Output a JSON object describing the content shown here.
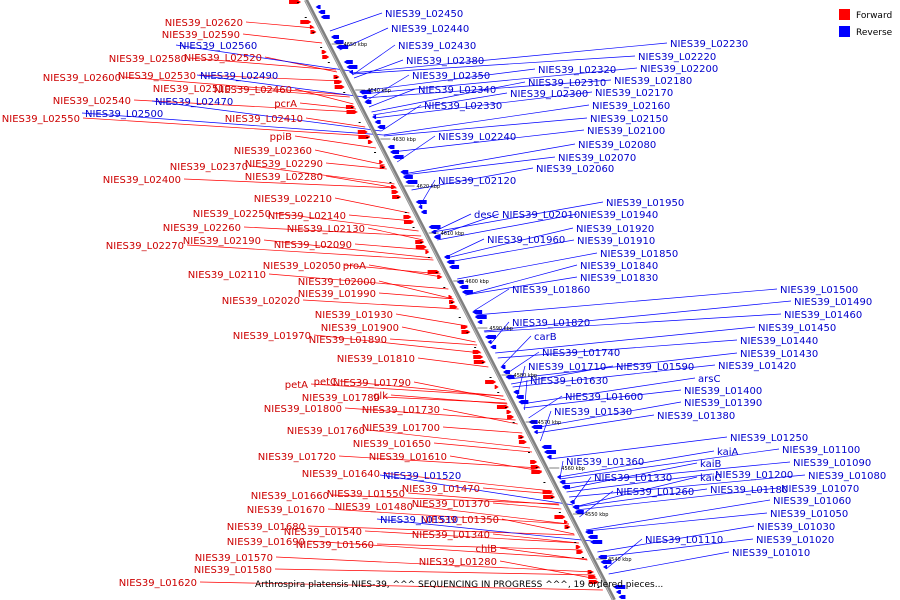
{
  "caption": "Arthrospira platensis NIES-39, ^^^ SEQUENCING IN PROGRESS ^^^, 19 ordered pieces...",
  "legend": [
    {
      "label": "Forward",
      "color": "#ff0000"
    },
    {
      "label": "Reverse",
      "color": "#0000ff"
    }
  ],
  "colors": {
    "forward": "#cc0000",
    "reverse": "#0000cc",
    "axis": "#808080"
  },
  "kbp_ticks": [
    "4650 kbp",
    "4640 kbp",
    "4630 kbp",
    "4620 kbp",
    "4610 kbp",
    "4600 kbp",
    "4590 kbp",
    "4580 kbp",
    "4570 kbp",
    "4560 kbp",
    "4550 kbp",
    "4540 kbp"
  ],
  "forward_labels": [
    "NIES39_L02620",
    "NIES39_L02590",
    "NIES39_L02580",
    "NIES39_L02520",
    "NIES39_L02600",
    "NIES39_L02530",
    "NIES39_L02510",
    "NIES39_L02540",
    "NIES39_L02460",
    "NIES39_L02550",
    "pcrA",
    "NIES39_L02410",
    "ppiB",
    "NIES39_L02360",
    "NIES39_L02370",
    "NIES39_L02290",
    "NIES39_L02400",
    "NIES39_L02280",
    "NIES39_L02210",
    "NIES39_L02250",
    "NIES39_L02140",
    "NIES39_L02260",
    "NIES39_L02130",
    "NIES39_L02270",
    "NIES39_L02190",
    "NIES39_L02090",
    "NIES39_L02050",
    "proA",
    "NIES39_L02110",
    "NIES39_L02000",
    "NIES39_L01990",
    "NIES39_L02020",
    "NIES39_L01930",
    "NIES39_L01900",
    "NIES39_L01970",
    "NIES39_L01890",
    "NIES39_L01810",
    "petA",
    "petC",
    "NIES39_L01790",
    "NIES39_L01780",
    "glk",
    "NIES39_L01800",
    "NIES39_L01730",
    "NIES39_L01760",
    "NIES39_L01700",
    "NIES39_L01650",
    "NIES39_L01720",
    "NIES39_L01610",
    "NIES39_L01640",
    "NIES39_L01470",
    "NIES39_L01660",
    "NIES39_L01550",
    "NIES39_L01670",
    "NIES39_L01480",
    "NIES39_L01370",
    "NIES39_L01680",
    "NIES39_L01540",
    "NIES39_L01350",
    "NIES39_L01690",
    "NIES39_L01560",
    "NIES39_L01340",
    "chlB",
    "NIES39_L01570",
    "NIES39_L01280",
    "NIES39_L01580",
    "NIES39_L01620"
  ],
  "reverse_labels": [
    "NIES39_L02450",
    "NIES39_L02440",
    "NIES39_L02560",
    "NIES39_L02430",
    "NIES39_L02380",
    "NIES39_L02490",
    "NIES39_L02350",
    "NIES39_L02470",
    "NIES39_L02340",
    "NIES39_L02500",
    "NIES39_L02330",
    "NIES39_L02230",
    "NIES39_L02220",
    "NIES39_L02320",
    "NIES39_L02200",
    "NIES39_L02310",
    "NIES39_L02180",
    "NIES39_L02300",
    "NIES39_L02170",
    "NIES39_L02160",
    "NIES39_L02150",
    "NIES39_L02100",
    "NIES39_L02240",
    "NIES39_L02080",
    "NIES39_L02070",
    "NIES39_L02060",
    "NIES39_L02120",
    "NIES39_L01950",
    "desC",
    "NIES39_L02010",
    "NIES39_L01940",
    "NIES39_L01920",
    "NIES39_L01960",
    "NIES39_L01910",
    "NIES39_L01850",
    "NIES39_L01840",
    "NIES39_L01830",
    "NIES39_L01860",
    "NIES39_L01500",
    "NIES39_L01490",
    "NIES39_L01460",
    "NIES39_L01820",
    "NIES39_L01450",
    "carB",
    "NIES39_L01440",
    "NIES39_L01740",
    "NIES39_L01430",
    "NIES39_L01710",
    "NIES39_L01590",
    "NIES39_L01420",
    "arsC",
    "NIES39_L01630",
    "NIES39_L01400",
    "NIES39_L01600",
    "NIES39_L01390",
    "NIES39_L01530",
    "NIES39_L01380",
    "NIES39_L01250",
    "kaiA",
    "NIES39_L01100",
    "NIES39_L01360",
    "NIES39_L01090",
    "kaiB",
    "NIES39_L01520",
    "NIES39_L01200",
    "NIES39_L01080",
    "NIES39_L01330",
    "kaiC",
    "NIES39_L01180",
    "NIES39_L01070",
    "NIES39_L01260",
    "NIES39_L01060",
    "NIES39_L01050",
    "NIES39_L01510",
    "NIES39_L01030",
    "NIES39_L01110",
    "NIES39_L01020",
    "NIES39_L01010"
  ]
}
